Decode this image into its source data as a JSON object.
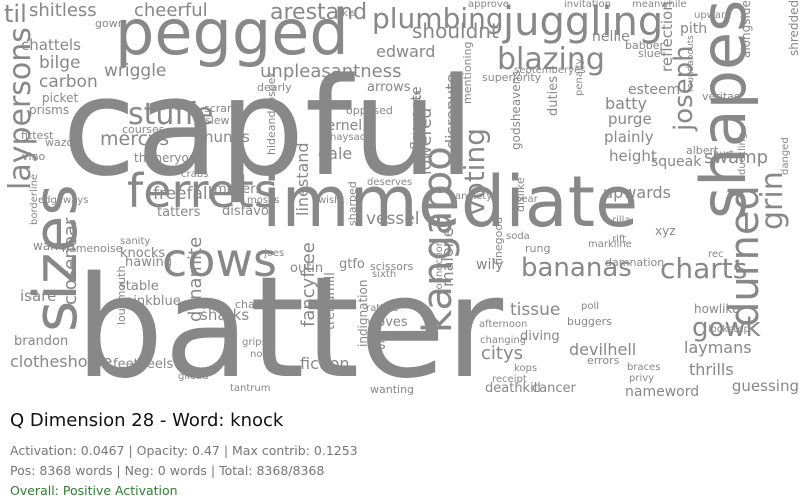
{
  "caption": {
    "title": "Q Dimension 28 - Word: knock",
    "stats_line": "Activation: 0.0467 | Opacity: 0.47 | Max contrib: 0.1253",
    "counts_line": "Pos: 8368 words | Neg: 0 words | Total: 8368/8368",
    "overall": "Overall: Positive Activation"
  },
  "colors": {
    "word": "#888888",
    "overall": "#2e7d32",
    "title": "#111111",
    "meta": "#777777"
  },
  "words": [
    "capful",
    "batter",
    "immediate",
    "pegged",
    "sizes",
    "ferrets",
    "cows",
    "shapes",
    "juggling",
    "durned",
    "plumbing",
    "blazing",
    "kangaroo",
    "stuffe",
    "charts",
    "gowk",
    "bananas",
    "laypersons",
    "grin",
    "voting",
    "til",
    "shitless",
    "cheerful",
    "arestand",
    "carbon",
    "bilge",
    "chattels",
    "wriggle",
    "unpleasantness",
    "shouldnt",
    "edward",
    "nellie",
    "joseph",
    "pith",
    "mercys",
    "nunns",
    "kernel",
    "dale",
    "linestand",
    "freefall",
    "misters",
    "tatters",
    "disfavor",
    "outin",
    "gtfo",
    "wily",
    "tissue",
    "swamp",
    "upwards",
    "squeak",
    "height",
    "plainly",
    "purge",
    "batty",
    "esteem",
    "reflection",
    "alongside",
    "shredded",
    "vessel",
    "lowered",
    "disrepute",
    "fancyfree",
    "dynamite",
    "sharks",
    "hawing",
    "knocks",
    "warren",
    "isare",
    "closenear",
    "brandon",
    "clotheshorse",
    "feetheels",
    "fiction",
    "malone",
    "citys",
    "diving",
    "devilhell",
    "laymans",
    "thrills",
    "guessing",
    "nameword",
    "cancer",
    "deathkill",
    "wanting",
    "tantrum",
    "gilead",
    "nowt",
    "grips",
    "indignation",
    "treadmill",
    "rattles",
    "doves",
    "tis",
    "sixth",
    "vino",
    "fittest",
    "prisms",
    "picket",
    "courses",
    "thitheryon",
    "flagrante",
    "opposed",
    "haysack",
    "duties",
    "septemberyes",
    "slue",
    "superiority",
    "arrows",
    "dearly",
    "scram",
    "slew",
    "crabs",
    "joes",
    "damnation",
    "buggers",
    "poll",
    "howlike",
    "lockstep",
    "braces",
    "privy",
    "errors",
    "receipt",
    "kops",
    "changing",
    "afternoon",
    "stable",
    "pinkblue",
    "loudmouth",
    "chaff",
    "borderline",
    "namenoise",
    "edgeways",
    "wazoo",
    "sanity",
    "moses",
    "hideandgoseek",
    "shoelaces",
    "connection",
    "godsheavens",
    "finegood",
    "markline",
    "xyz",
    "rec",
    "rilla",
    "skis",
    "gown",
    "approve",
    "invitation",
    "meanwhile",
    "upward",
    "babber",
    "scissors",
    "dislike",
    "tape",
    "anxiety",
    "pear",
    "rung",
    "soda",
    "sharped",
    "wisht",
    "deserves",
    "mentioning",
    "penalty",
    "veritas",
    "duckling",
    "danged",
    "roundabouts",
    "albert",
    "hurt",
    "rift"
  ]
}
